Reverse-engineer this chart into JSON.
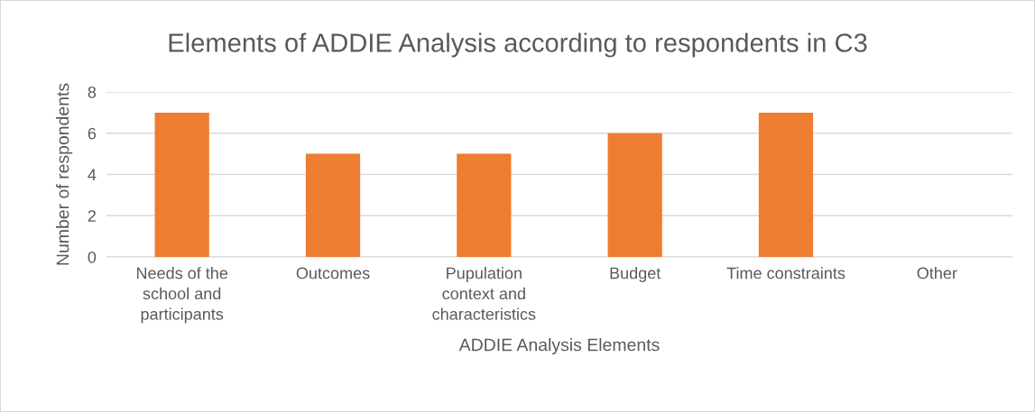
{
  "chart_data": {
    "type": "bar",
    "title": "Elements of ADDIE Analysis according to respondents in C3",
    "xlabel": "ADDIE Analysis Elements",
    "ylabel": "Number of respondents",
    "categories": [
      "Needs of the\nschool and\nparticipants",
      "Outcomes",
      "Pupulation\ncontext and\ncharacteristics",
      "Budget",
      "Time constraints",
      "Other"
    ],
    "values": [
      7,
      5,
      5,
      6,
      7,
      0
    ],
    "color": "#ed7d31",
    "ylim": [
      0,
      8
    ],
    "yticks": [
      0,
      2,
      4,
      6,
      8
    ],
    "grid": "y",
    "legend": false
  }
}
